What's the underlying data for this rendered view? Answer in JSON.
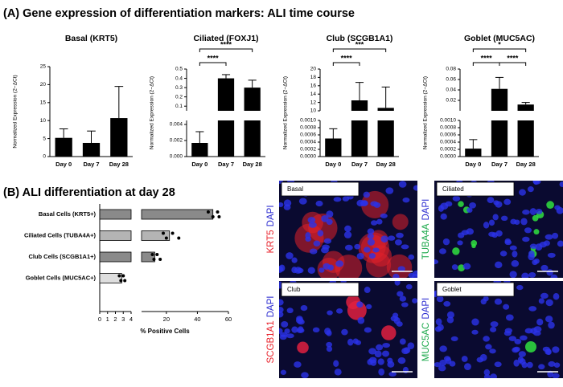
{
  "panels": {
    "a_title": "(A) Gene expression of differentiation markers: ALI time course",
    "b_title": "(B) ALI differentiation at day 28"
  },
  "chart_data": [
    {
      "type": "bar",
      "title": "Basal (KRT5)",
      "ylabel": "Normalized Expression (2−ΔCt)",
      "color": "#000000",
      "categories": [
        "Day 0",
        "Day 7",
        "Day 28"
      ],
      "values": [
        5.2,
        3.8,
        10.7
      ],
      "errors": [
        2.5,
        3.3,
        8.8
      ],
      "ylim": [
        0,
        25
      ],
      "yticks": [
        0,
        5,
        10,
        15,
        20,
        25
      ],
      "comparisons": []
    },
    {
      "type": "bar",
      "title": "Ciliated (FOXJ1)",
      "ylabel": "Normalized Expression (2−ΔCt)",
      "color": "#000000",
      "categories": [
        "Day 0",
        "Day 7",
        "Day 28"
      ],
      "values": [
        0.0017,
        0.4,
        0.3
      ],
      "errors": [
        0.0014,
        0.04,
        0.08
      ],
      "segments": [
        {
          "ylim": [
            0,
            0.0045
          ],
          "yticks": [
            {
              "value": 0,
              "label": "0.000"
            },
            {
              "value": 0.002,
              "label": "0.002"
            },
            {
              "value": 0.004,
              "label": "0.004"
            }
          ]
        },
        {
          "ylim": [
            0.05,
            0.5
          ],
          "yticks": [
            0.1,
            0.2,
            0.3,
            0.4,
            0.5
          ]
        }
      ],
      "comparisons": [
        {
          "label": "****",
          "groups": [
            "Day 0",
            "Day 7"
          ]
        },
        {
          "label": "****",
          "groups": [
            "Day 0",
            "Day 28"
          ]
        }
      ]
    },
    {
      "type": "bar",
      "title": "Club (SCGB1A1)",
      "ylabel": "Normalized Expression (2−ΔCt)",
      "color": "#000000",
      "categories": [
        "Day 0",
        "Day 7",
        "Day 28"
      ],
      "values": [
        0.0005,
        12.5,
        10.7
      ],
      "errors": [
        0.00027,
        4.3,
        5.0
      ],
      "segments": [
        {
          "ylim": [
            0,
            0.001
          ],
          "yticks": [
            {
              "value": 0,
              "label": "0.0000"
            },
            {
              "value": 0.0002,
              "label": "0.0002"
            },
            {
              "value": 0.0004,
              "label": "0.0004"
            },
            {
              "value": 0.0006,
              "label": "0.0006"
            },
            {
              "value": 0.0008,
              "label": "0.0008"
            },
            {
              "value": 0.001,
              "label": "0.0010"
            }
          ]
        },
        {
          "ylim": [
            10,
            20
          ],
          "yticks": [
            10,
            12,
            14,
            16,
            18,
            20
          ]
        }
      ],
      "comparisons": [
        {
          "label": "****",
          "groups": [
            "Day 0",
            "Day 7"
          ]
        },
        {
          "label": "***",
          "groups": [
            "Day 0",
            "Day 28"
          ]
        }
      ]
    },
    {
      "type": "bar",
      "title": "Goblet (MUC5AC)",
      "ylabel": "Normalized Expression (2−ΔCt)",
      "color": "#000000",
      "categories": [
        "Day 0",
        "Day 7",
        "Day 28"
      ],
      "values": [
        0.00022,
        0.042,
        0.012
      ],
      "errors": [
        0.00025,
        0.022,
        0.004
      ],
      "segments": [
        {
          "ylim": [
            0,
            0.001
          ],
          "yticks": [
            {
              "value": 0,
              "label": "0.0000"
            },
            {
              "value": 0.0002,
              "label": "0.0002"
            },
            {
              "value": 0.0004,
              "label": "0.0004"
            },
            {
              "value": 0.0006,
              "label": "0.0006"
            },
            {
              "value": 0.0008,
              "label": "0.0008"
            },
            {
              "value": 0.001,
              "label": "0.0010"
            }
          ]
        },
        {
          "ylim": [
            0,
            0.08
          ],
          "yticks": [
            0.02,
            0.04,
            0.06,
            0.08
          ]
        }
      ],
      "comparisons": [
        {
          "label": "****",
          "groups": [
            "Day 0",
            "Day 7"
          ]
        },
        {
          "label": "****",
          "groups": [
            "Day 7",
            "Day 28"
          ]
        },
        {
          "label": "*",
          "groups": [
            "Day 0",
            "Day 28"
          ]
        }
      ]
    },
    {
      "type": "hbar",
      "xlabel": "% Positive Cells",
      "categories": [
        "Basal Cells (KRT5+)",
        "Ciliated Cells (TUBA4A+)",
        "Club Cells (SCGB1A1+)",
        "Goblet Cells (MUC5AC+)"
      ],
      "values": [
        50,
        22,
        12.5,
        2.8
      ],
      "colors": [
        "#8a8a8a",
        "#b4b4b4",
        "#8a8a8a",
        "#dedede"
      ],
      "points": [
        [
          47,
          50,
          53,
          54
        ],
        [
          18,
          20,
          24,
          28
        ],
        [
          11,
          12,
          14,
          16
        ],
        [
          2.5,
          2.7,
          3.0,
          3.2
        ]
      ],
      "segments": [
        {
          "xlim": [
            0,
            4
          ],
          "xticks": [
            0,
            1,
            2,
            3,
            4
          ]
        },
        {
          "xlim": [
            4,
            60
          ],
          "xticks": [
            20,
            40,
            60
          ]
        }
      ]
    }
  ],
  "images": [
    {
      "label": "Basal",
      "stain": [
        {
          "text": "KRT5",
          "color": "#e8202a"
        },
        {
          "text": "DAPI",
          "color": "#2a2ad0"
        }
      ],
      "signal": "#e0202a"
    },
    {
      "label": "Ciliated",
      "stain": [
        {
          "text": "TUBA4A",
          "color": "#1aa84a"
        },
        {
          "text": "DAPI",
          "color": "#2a2ad0"
        }
      ],
      "signal": "#30e040"
    },
    {
      "label": "Club",
      "stain": [
        {
          "text": "SCGB1A1",
          "color": "#e8202a"
        },
        {
          "text": "DAPI",
          "color": "#2a2ad0"
        }
      ],
      "signal": "#e02040"
    },
    {
      "label": "Goblet",
      "stain": [
        {
          "text": "MUC5AC",
          "color": "#1aa84a"
        },
        {
          "text": "DAPI",
          "color": "#2a2ad0"
        }
      ],
      "signal": "#30e040"
    }
  ]
}
